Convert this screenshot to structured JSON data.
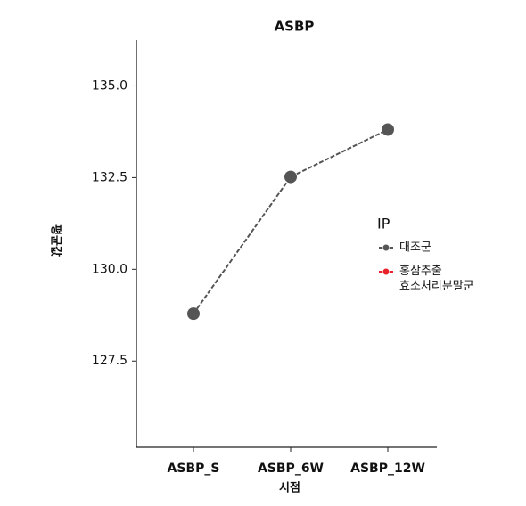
{
  "chart_data": {
    "type": "line",
    "title": "ASBP",
    "x_label": "시점",
    "y_label": "평균값",
    "categories": [
      "ASBP_S",
      "ASBP_6W",
      "ASBP_12W"
    ],
    "series": [
      {
        "name": "대조군",
        "color": "#555555",
        "values": [
          128.79,
          132.52,
          133.81
        ]
      },
      {
        "name": "홍삼추출\n효소처리분말군",
        "color": "#e8212b",
        "values": [
          null,
          null,
          null
        ]
      }
    ],
    "legend_title": "IP",
    "ylim": [
      125.15,
      136.25
    ],
    "yticks": [
      {
        "value": 127.5,
        "label": "127.5"
      },
      {
        "value": 130,
        "label": "130.0"
      },
      {
        "value": 132.5,
        "label": "132.5"
      },
      {
        "value": 135,
        "label": "135.0"
      }
    ],
    "grid": false,
    "legend": "right"
  }
}
